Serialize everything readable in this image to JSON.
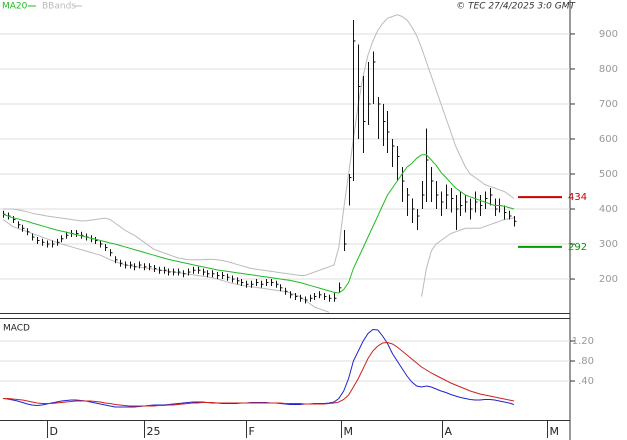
{
  "chart_data": [
    {
      "type": "ohlc",
      "copyright": "© TEC 27/4/2025 3:0 GMT",
      "ylim": [
        103,
        997
      ],
      "yticks": [
        200,
        300,
        400,
        500,
        600,
        700,
        800,
        900
      ],
      "high": [
        395,
        390,
        380,
        365,
        355,
        345,
        330,
        320,
        315,
        310,
        310,
        315,
        325,
        335,
        340,
        340,
        335,
        330,
        325,
        320,
        310,
        300,
        285,
        265,
        255,
        250,
        250,
        245,
        250,
        245,
        245,
        240,
        235,
        235,
        230,
        230,
        230,
        225,
        230,
        235,
        235,
        230,
        225,
        225,
        220,
        220,
        215,
        210,
        205,
        200,
        195,
        195,
        200,
        195,
        200,
        200,
        195,
        185,
        175,
        165,
        160,
        155,
        150,
        155,
        160,
        165,
        160,
        155,
        160,
        190,
        340,
        500,
        940,
        870,
        780,
        820,
        850,
        720,
        700,
        680,
        600,
        580,
        520,
        460,
        430,
        400,
        480,
        630,
        520,
        480,
        450,
        470,
        460,
        440,
        450,
        440,
        430,
        450,
        440,
        450,
        460,
        430,
        430,
        410,
        395,
        380
      ],
      "low": [
        375,
        370,
        360,
        345,
        335,
        325,
        310,
        300,
        295,
        290,
        290,
        295,
        305,
        315,
        320,
        320,
        315,
        310,
        305,
        300,
        290,
        280,
        265,
        245,
        235,
        230,
        230,
        225,
        230,
        225,
        225,
        220,
        215,
        215,
        210,
        210,
        210,
        205,
        210,
        215,
        215,
        210,
        205,
        205,
        200,
        200,
        195,
        190,
        185,
        180,
        175,
        175,
        180,
        175,
        180,
        180,
        175,
        165,
        155,
        145,
        140,
        135,
        130,
        135,
        140,
        145,
        140,
        135,
        135,
        160,
        280,
        410,
        480,
        600,
        560,
        640,
        700,
        600,
        580,
        560,
        520,
        480,
        420,
        380,
        360,
        340,
        400,
        420,
        420,
        400,
        380,
        400,
        390,
        340,
        380,
        390,
        370,
        390,
        380,
        400,
        410,
        380,
        390,
        370,
        370,
        350
      ],
      "close": [
        385,
        380,
        370,
        355,
        345,
        335,
        320,
        310,
        305,
        300,
        300,
        305,
        315,
        325,
        330,
        330,
        325,
        320,
        315,
        310,
        300,
        290,
        275,
        255,
        245,
        240,
        240,
        235,
        240,
        235,
        235,
        230,
        225,
        225,
        220,
        220,
        220,
        215,
        220,
        225,
        225,
        220,
        215,
        215,
        210,
        210,
        205,
        200,
        195,
        190,
        185,
        185,
        190,
        185,
        190,
        190,
        185,
        175,
        165,
        155,
        150,
        145,
        140,
        145,
        150,
        155,
        150,
        145,
        145,
        175,
        300,
        490,
        880,
        750,
        650,
        700,
        820,
        700,
        650,
        620,
        580,
        550,
        480,
        440,
        400,
        380,
        440,
        540,
        480,
        440,
        420,
        440,
        430,
        400,
        410,
        420,
        400,
        420,
        410,
        430,
        440,
        400,
        410,
        390,
        380,
        365
      ],
      "series": [
        {
          "name": "MA20",
          "color": "#22bb22",
          "values": [
            385,
            380,
            375,
            372,
            368,
            365,
            360,
            356,
            352,
            348,
            344,
            340,
            337,
            334,
            330,
            327,
            324,
            320,
            317,
            314,
            310,
            307,
            303,
            300,
            296,
            292,
            288,
            284,
            280,
            276,
            272,
            268,
            264,
            260,
            256,
            253,
            250,
            247,
            244,
            241,
            238,
            235,
            232,
            229,
            226,
            224,
            222,
            220,
            218,
            216,
            214,
            212,
            210,
            208,
            206,
            204,
            202,
            200,
            198,
            196,
            193,
            190,
            186,
            182,
            178,
            174,
            170,
            166,
            162,
            160,
            170,
            190,
            230,
            260,
            290,
            320,
            350,
            380,
            410,
            440,
            460,
            480,
            500,
            520,
            530,
            545,
            555,
            555,
            540,
            525,
            505,
            490,
            475,
            460,
            450,
            440,
            435,
            430,
            425,
            420,
            415,
            410,
            410,
            408,
            404,
            400
          ]
        },
        {
          "name": "BBands",
          "color": "#bbbbbb",
          "upper": [
            400,
            400,
            400,
            398,
            395,
            392,
            388,
            385,
            383,
            380,
            378,
            376,
            374,
            372,
            370,
            368,
            366,
            366,
            368,
            370,
            372,
            374,
            370,
            360,
            350,
            340,
            332,
            325,
            315,
            305,
            295,
            285,
            280,
            275,
            270,
            265,
            260,
            258,
            255,
            255,
            255,
            255,
            256,
            256,
            255,
            253,
            250,
            246,
            242,
            238,
            234,
            230,
            228,
            226,
            224,
            222,
            220,
            218,
            216,
            214,
            212,
            210,
            210,
            215,
            220,
            225,
            230,
            235,
            240,
            290,
            400,
            500,
            600,
            700,
            780,
            840,
            880,
            910,
            930,
            945,
            950,
            955,
            950,
            940,
            920,
            895,
            860,
            820,
            780,
            740,
            700,
            660,
            620,
            580,
            550,
            520,
            500,
            490,
            480,
            470,
            465,
            460,
            455,
            450,
            440,
            430
          ],
          "lower": [
            370,
            360,
            350,
            345,
            340,
            335,
            330,
            325,
            320,
            315,
            310,
            305,
            300,
            296,
            292,
            288,
            284,
            280,
            276,
            272,
            268,
            262,
            255,
            250,
            245,
            240,
            238,
            236,
            234,
            232,
            230,
            228,
            226,
            224,
            222,
            220,
            218,
            216,
            214,
            212,
            210,
            208,
            206,
            204,
            200,
            196,
            192,
            188,
            185,
            182,
            180,
            178,
            176,
            174,
            172,
            170,
            168,
            166,
            164,
            160,
            155,
            150,
            140,
            130,
            120,
            115,
            110,
            105,
            null,
            null,
            null,
            null,
            null,
            null,
            null,
            null,
            null,
            null,
            null,
            null,
            null,
            null,
            null,
            null,
            null,
            null,
            150,
            230,
            280,
            300,
            310,
            320,
            330,
            335,
            340,
            345,
            345,
            345,
            345,
            350,
            355,
            360,
            365,
            370,
            372,
            375
          ]
        }
      ],
      "annotations": [
        {
          "value": 434,
          "color": "#cc0000"
        },
        {
          "value": 292,
          "color": "#009900"
        }
      ]
    },
    {
      "type": "line",
      "title": "MACD",
      "ylim": [
        -0.38,
        1.66
      ],
      "yticks": [
        {
          "value": 0.4,
          "label": ".40"
        },
        {
          "value": 0.8,
          "label": ".80"
        },
        {
          "value": 1.2,
          "label": "1.20"
        }
      ],
      "xlim": [
        -0.62,
        116.5
      ],
      "xticks": [
        {
          "value": 9.1,
          "label": "D"
        },
        {
          "value": 28.9,
          "label": "25"
        },
        {
          "value": 49.9,
          "label": "F"
        },
        {
          "value": 69.5,
          "label": "M"
        },
        {
          "value": 90.1,
          "label": "A"
        },
        {
          "value": 111.8,
          "label": "M"
        }
      ],
      "series": [
        {
          "color": "#2222cc",
          "values": [
            0.05,
            0.04,
            0.02,
            0,
            -0.03,
            -0.06,
            -0.08,
            -0.09,
            -0.08,
            -0.06,
            -0.04,
            -0.02,
            0,
            0.01,
            0.02,
            0.02,
            0.01,
            0,
            -0.02,
            -0.04,
            -0.06,
            -0.08,
            -0.1,
            -0.12,
            -0.12,
            -0.12,
            -0.12,
            -0.12,
            -0.11,
            -0.1,
            -0.09,
            -0.08,
            -0.08,
            -0.08,
            -0.07,
            -0.06,
            -0.05,
            -0.04,
            -0.03,
            -0.02,
            -0.02,
            -0.02,
            -0.03,
            -0.04,
            -0.04,
            -0.05,
            -0.05,
            -0.05,
            -0.05,
            -0.04,
            -0.04,
            -0.03,
            -0.03,
            -0.03,
            -0.03,
            -0.04,
            -0.04,
            -0.05,
            -0.06,
            -0.07,
            -0.07,
            -0.07,
            -0.06,
            -0.06,
            -0.05,
            -0.05,
            -0.05,
            -0.04,
            -0.02,
            0.05,
            0.2,
            0.45,
            0.8,
            1.0,
            1.2,
            1.35,
            1.43,
            1.42,
            1.3,
            1.15,
            0.95,
            0.8,
            0.65,
            0.5,
            0.38,
            0.3,
            0.28,
            0.3,
            0.28,
            0.24,
            0.2,
            0.17,
            0.13,
            0.1,
            0.07,
            0.05,
            0.03,
            0.02,
            0.02,
            0.03,
            0.03,
            0.02,
            0.0,
            -0.02,
            -0.04,
            -0.07
          ]
        },
        {
          "color": "#cc2222",
          "values": [
            0.05,
            0.05,
            0.04,
            0.03,
            0.02,
            0,
            -0.02,
            -0.04,
            -0.05,
            -0.05,
            -0.05,
            -0.04,
            -0.03,
            -0.02,
            -0.01,
            0,
            0,
            0,
            0,
            -0.01,
            -0.02,
            -0.04,
            -0.05,
            -0.07,
            -0.08,
            -0.09,
            -0.1,
            -0.1,
            -0.1,
            -0.1,
            -0.1,
            -0.1,
            -0.09,
            -0.09,
            -0.08,
            -0.08,
            -0.07,
            -0.06,
            -0.05,
            -0.04,
            -0.04,
            -0.03,
            -0.03,
            -0.03,
            -0.04,
            -0.04,
            -0.04,
            -0.04,
            -0.04,
            -0.04,
            -0.04,
            -0.04,
            -0.04,
            -0.04,
            -0.04,
            -0.04,
            -0.04,
            -0.04,
            -0.05,
            -0.05,
            -0.05,
            -0.05,
            -0.06,
            -0.06,
            -0.06,
            -0.06,
            -0.06,
            -0.05,
            -0.04,
            -0.02,
            0.03,
            0.12,
            0.28,
            0.45,
            0.65,
            0.85,
            1.0,
            1.1,
            1.16,
            1.17,
            1.14,
            1.08,
            1.0,
            0.92,
            0.84,
            0.76,
            0.68,
            0.62,
            0.56,
            0.51,
            0.46,
            0.41,
            0.36,
            0.32,
            0.28,
            0.24,
            0.2,
            0.17,
            0.14,
            0.12,
            0.1,
            0.08,
            0.06,
            0.04,
            0.02,
            0.0
          ]
        }
      ]
    }
  ]
}
